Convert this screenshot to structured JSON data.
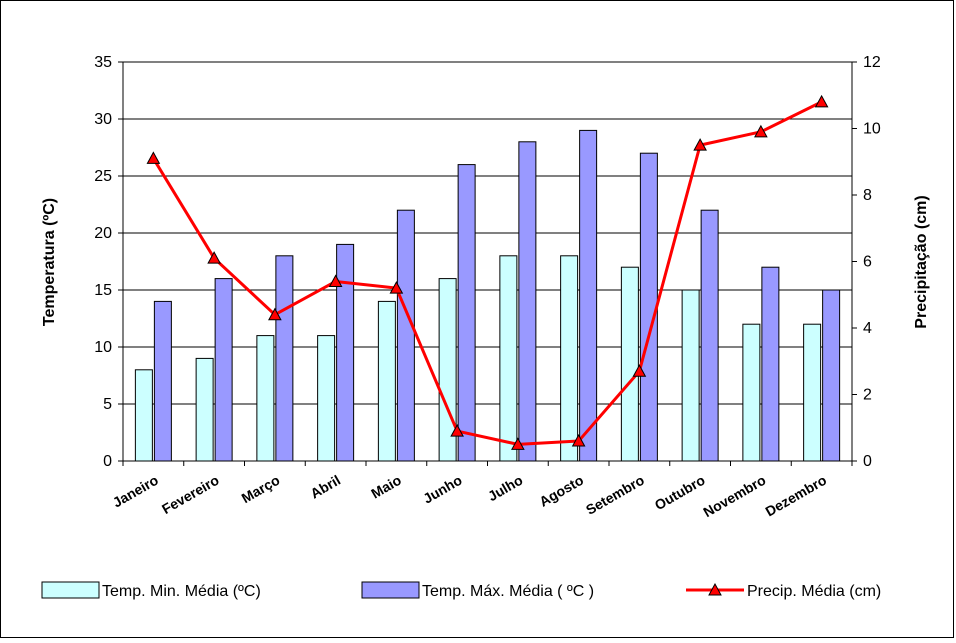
{
  "chart_data": {
    "type": "bar",
    "categories": [
      "Janeiro",
      "Fevereiro",
      "Março",
      "Abril",
      "Maio",
      "Junho",
      "Julho",
      "Agosto",
      "Setembro",
      "Outubro",
      "Novembro",
      "Dezembro"
    ],
    "series": [
      {
        "name": "Temp. Min. Média (ºC)",
        "kind": "bar",
        "axis": "left",
        "color": "#CCFFFF",
        "values": [
          8,
          9,
          11,
          11,
          14,
          16,
          18,
          18,
          17,
          15,
          12,
          12
        ]
      },
      {
        "name": "Temp. Máx. Média ( ºC )",
        "kind": "bar",
        "axis": "left",
        "color": "#9999FF",
        "values": [
          14,
          16,
          18,
          19,
          22,
          26,
          28,
          29,
          27,
          22,
          17,
          15
        ]
      },
      {
        "name": "Precip. Média (cm)",
        "kind": "line",
        "axis": "right",
        "color": "#FF0000",
        "marker": "triangle",
        "values": [
          9.1,
          6.1,
          4.4,
          5.4,
          5.2,
          0.9,
          0.5,
          0.6,
          2.7,
          9.5,
          9.9,
          10.8
        ]
      }
    ],
    "ylabel": "Temperatura (ºC)",
    "y2label": "Precipitação (cm)",
    "ylim": [
      0,
      35
    ],
    "y2lim": [
      0,
      12
    ],
    "yticks": [
      0,
      5,
      10,
      15,
      20,
      25,
      30,
      35
    ],
    "y2ticks": [
      0,
      2,
      4,
      6,
      8,
      10,
      12
    ],
    "grid": true,
    "legend": "bottom"
  }
}
